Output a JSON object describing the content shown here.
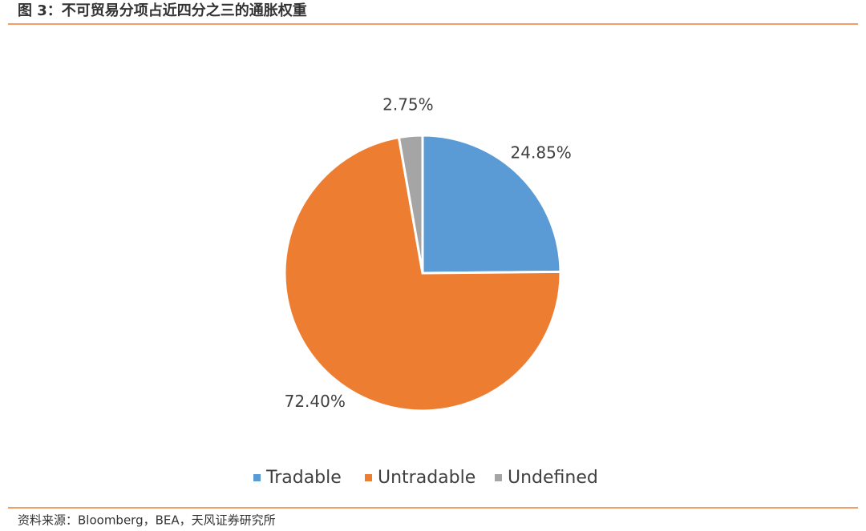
{
  "chart_data": {
    "type": "pie",
    "title": "图 3：不可贸易分项占近四分之三的通胀权重",
    "categories": [
      "Tradable",
      "Untradable",
      "Undefined"
    ],
    "values": [
      24.85,
      72.4,
      2.75
    ],
    "value_labels": [
      "24.85%",
      "72.40%",
      "2.75%"
    ],
    "colors": [
      "#5b9bd5",
      "#ed7d31",
      "#a5a5a5"
    ],
    "legend": "bottom",
    "source": "资料来源：Bloomberg，BEA，天风证券研究所"
  }
}
